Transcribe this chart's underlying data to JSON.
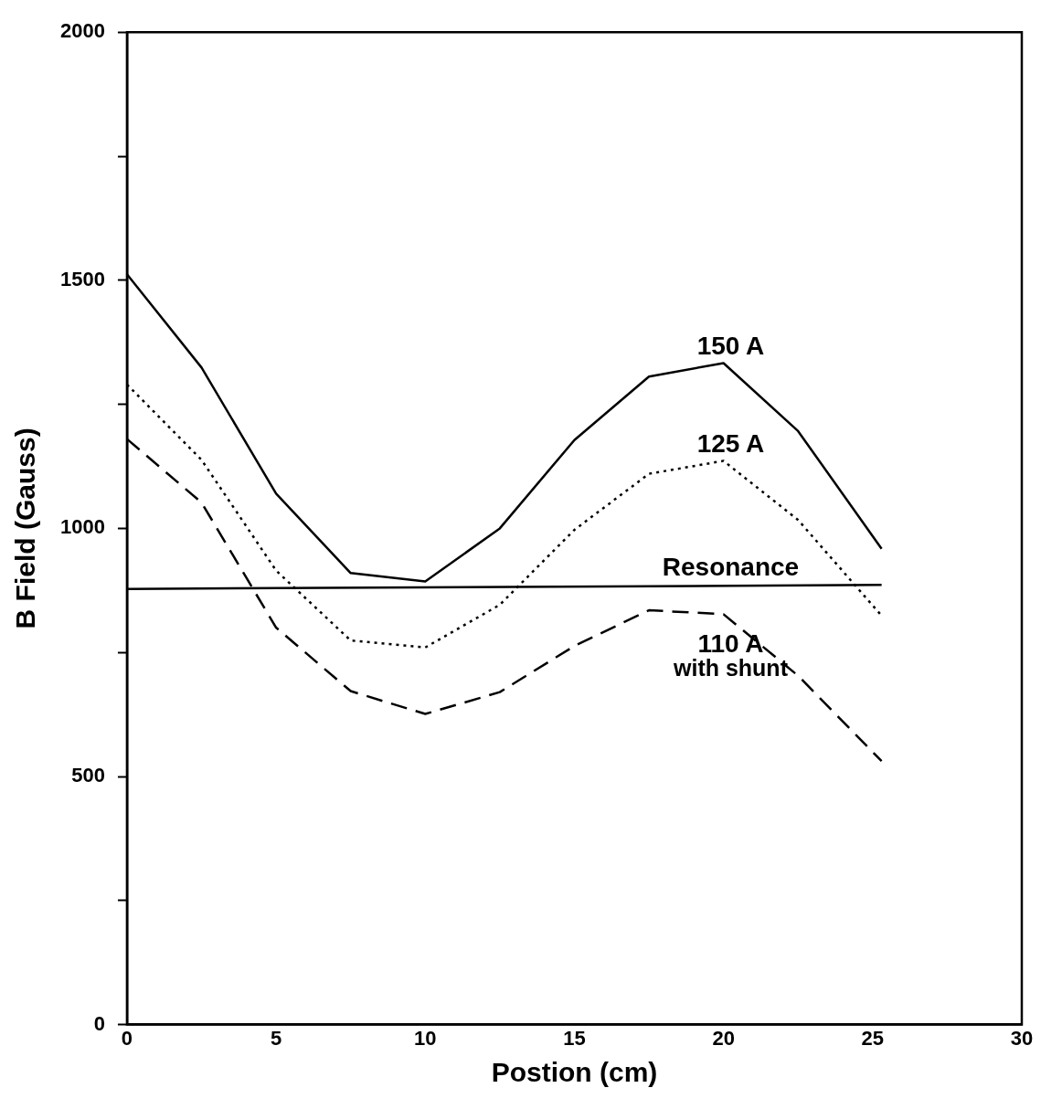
{
  "chart_data": {
    "type": "line",
    "xlabel": "Postion (cm)",
    "ylabel": "B Field (Gauss)",
    "xlim": [
      0,
      30
    ],
    "xticks": [
      0,
      5,
      10,
      15,
      20,
      25,
      30
    ],
    "ylim": [
      0,
      2000
    ],
    "yticks": [
      0,
      {
        "value": 250,
        "label": null
      },
      500,
      {
        "value": 750,
        "label": null
      },
      1000,
      {
        "value": 1250,
        "label": null
      },
      1500,
      {
        "value": 1750,
        "label": null
      },
      2000
    ],
    "grid": false,
    "legend": false,
    "marker": "none",
    "series": [
      {
        "name": "150 A",
        "color": "#000000",
        "line_style": "solid",
        "x": [
          0,
          2.5,
          5,
          7.5,
          10,
          12.5,
          15,
          17.5,
          20,
          22.5,
          25.3
        ],
        "values": [
          1512,
          1324,
          1070,
          910,
          893,
          1000,
          1178,
          1306,
          1333,
          1196,
          959
        ]
      },
      {
        "name": "125 A",
        "color": "#000000",
        "line_style": "dotted",
        "x": [
          0,
          2.5,
          5,
          7.5,
          10,
          12.5,
          15,
          17.5,
          20,
          22.5,
          25.3
        ],
        "values": [
          1290,
          1138,
          915,
          774,
          760,
          846,
          997,
          1110,
          1136,
          1017,
          824
        ]
      },
      {
        "name": "Resonance",
        "color": "#000000",
        "line_style": "solid",
        "x": [
          0,
          25.3
        ],
        "values": [
          878,
          886
        ]
      },
      {
        "name": "110 A\nwith shunt",
        "color": "#000000",
        "line_style": "dashed",
        "x": [
          0,
          2.5,
          5,
          7.5,
          10,
          12.5,
          15,
          17.5,
          20,
          22.5,
          25.3
        ],
        "values": [
          1180,
          1052,
          800,
          672,
          626,
          670,
          763,
          835,
          827,
          703,
          531
        ]
      }
    ]
  }
}
